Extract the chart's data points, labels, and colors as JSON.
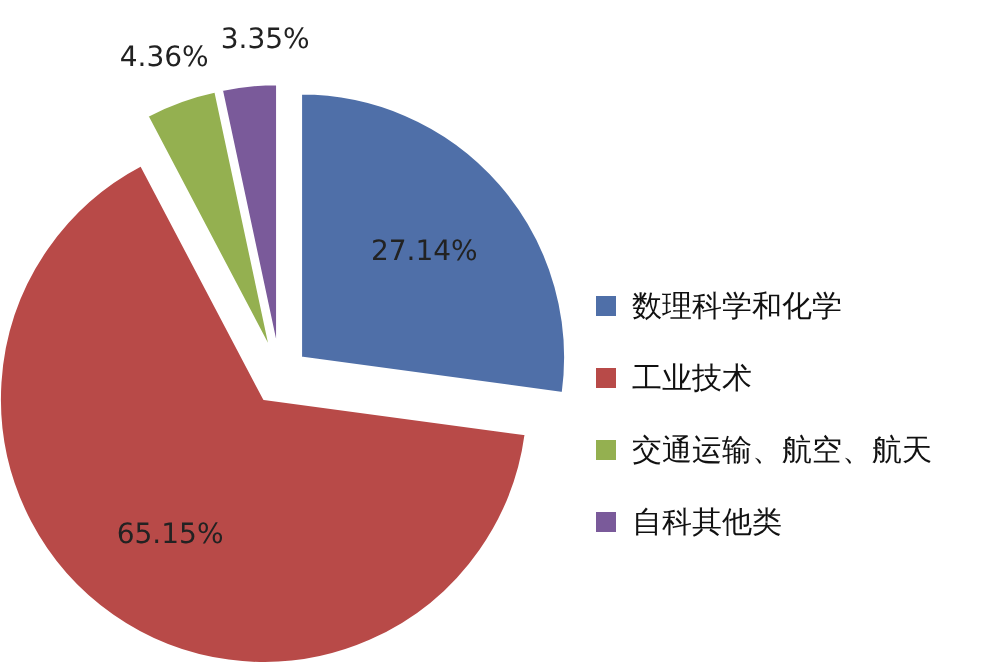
{
  "chart_data": {
    "type": "pie",
    "categories": [
      "数理科学和化学",
      "工业技术",
      "交通运输、航空、航天",
      "自科其他类"
    ],
    "values": [
      27.14,
      65.15,
      4.36,
      3.35
    ],
    "colors": [
      "#4f6fa8",
      "#b84a48",
      "#94b050",
      "#7a5a9a"
    ],
    "value_labels": [
      "27.14%",
      "65.15%",
      "4.36%",
      "3.35%"
    ],
    "legend": "right"
  }
}
